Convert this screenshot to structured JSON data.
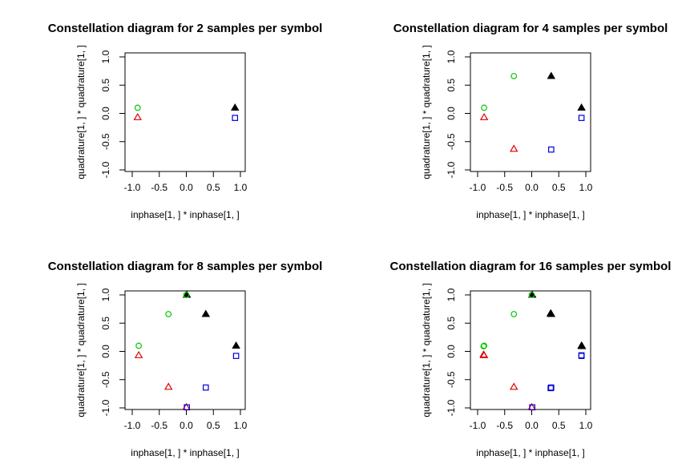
{
  "colors": {
    "pos_pos": "#000000",
    "neg_pos": "#00c800",
    "neg_neg": "#dc0000",
    "pos_neg": "#0000dc"
  },
  "chart_data": [
    {
      "type": "scatter",
      "title": "Constellation diagram for  2  samples per symbol",
      "xlabel": "inphase[1, ] * inphase[1, ]",
      "ylabel": "quadrature[1, ] * quadrature[1, ]",
      "xlim": [
        -1.0,
        1.0
      ],
      "ylim": [
        -1.0,
        1.0
      ],
      "xticks": [
        "-1.0",
        "-0.5",
        "0.0",
        "0.5",
        "1.0"
      ],
      "yticks": [
        "-1.0",
        "-0.5",
        "0.0",
        "0.5",
        "1.0"
      ],
      "series": [
        {
          "marker": "filled-triangle",
          "color": "#000000",
          "points": [
            [
              0.9,
              0.1
            ]
          ]
        },
        {
          "marker": "circle",
          "color": "#00c800",
          "points": [
            [
              -0.9,
              0.1
            ]
          ]
        },
        {
          "marker": "triangle",
          "color": "#dc0000",
          "points": [
            [
              -0.9,
              -0.07
            ]
          ]
        },
        {
          "marker": "square",
          "color": "#0000dc",
          "points": [
            [
              0.9,
              -0.08
            ]
          ]
        }
      ]
    },
    {
      "type": "scatter",
      "title": "Constellation diagram for  4  samples per symbol",
      "xlabel": "inphase[1, ] * inphase[1, ]",
      "ylabel": "quadrature[1, ] * quadrature[1, ]",
      "xlim": [
        -1.0,
        1.0
      ],
      "ylim": [
        -1.0,
        1.0
      ],
      "xticks": [
        "-1.0",
        "-0.5",
        "0.0",
        "0.5",
        "1.0"
      ],
      "yticks": [
        "-1.0",
        "-0.5",
        "0.0",
        "0.5",
        "1.0"
      ],
      "series": [
        {
          "marker": "filled-triangle",
          "color": "#000000",
          "points": [
            [
              0.92,
              0.1
            ],
            [
              0.36,
              0.66
            ]
          ]
        },
        {
          "marker": "circle",
          "color": "#00c800",
          "points": [
            [
              -0.88,
              0.1
            ],
            [
              -0.33,
              0.66
            ]
          ]
        },
        {
          "marker": "triangle",
          "color": "#dc0000",
          "points": [
            [
              -0.88,
              -0.07
            ],
            [
              -0.33,
              -0.63
            ]
          ]
        },
        {
          "marker": "square",
          "color": "#0000dc",
          "points": [
            [
              0.92,
              -0.08
            ],
            [
              0.36,
              -0.64
            ]
          ]
        }
      ]
    },
    {
      "type": "scatter",
      "title": "Constellation diagram for  8  samples per symbol",
      "xlabel": "inphase[1, ] * inphase[1, ]",
      "ylabel": "quadrature[1, ] * quadrature[1, ]",
      "xlim": [
        -1.0,
        1.0
      ],
      "ylim": [
        -1.0,
        1.0
      ],
      "xticks": [
        "-1.0",
        "-0.5",
        "0.0",
        "0.5",
        "1.0"
      ],
      "yticks": [
        "-1.0",
        "-0.5",
        "0.0",
        "0.5",
        "1.0"
      ],
      "series": [
        {
          "marker": "filled-triangle",
          "color": "#000000",
          "points": [
            [
              0.92,
              0.1
            ],
            [
              0.36,
              0.66
            ],
            [
              0.01,
              1.0
            ]
          ]
        },
        {
          "marker": "circle",
          "color": "#00c800",
          "points": [
            [
              -0.88,
              0.1
            ],
            [
              -0.33,
              0.66
            ],
            [
              0.0,
              1.0
            ]
          ]
        },
        {
          "marker": "triangle",
          "color": "#dc0000",
          "points": [
            [
              -0.88,
              -0.07
            ],
            [
              -0.33,
              -0.63
            ],
            [
              0.0,
              -0.99
            ]
          ]
        },
        {
          "marker": "square",
          "color": "#0000dc",
          "points": [
            [
              0.92,
              -0.08
            ],
            [
              0.36,
              -0.64
            ],
            [
              0.01,
              -0.99
            ]
          ]
        }
      ]
    },
    {
      "type": "scatter",
      "title": "Constellation diagram for  16  samples per symbol",
      "xlabel": "inphase[1, ] * inphase[1, ]",
      "ylabel": "quadrature[1, ] * quadrature[1, ]",
      "xlim": [
        -1.0,
        1.0
      ],
      "ylim": [
        -1.0,
        1.0
      ],
      "xticks": [
        "-1.0",
        "-0.5",
        "0.0",
        "0.5",
        "1.0"
      ],
      "yticks": [
        "-1.0",
        "-0.5",
        "0.0",
        "0.5",
        "1.0"
      ],
      "series": [
        {
          "marker": "filled-triangle",
          "color": "#000000",
          "points": [
            [
              0.92,
              0.1
            ],
            [
              0.36,
              0.66
            ],
            [
              0.01,
              1.0
            ],
            [
              0.93,
              0.09
            ],
            [
              0.35,
              0.67
            ]
          ]
        },
        {
          "marker": "circle",
          "color": "#00c800",
          "points": [
            [
              -0.88,
              0.1
            ],
            [
              -0.33,
              0.66
            ],
            [
              0.0,
              1.0
            ],
            [
              -0.89,
              0.09
            ]
          ]
        },
        {
          "marker": "triangle",
          "color": "#dc0000",
          "points": [
            [
              -0.88,
              -0.07
            ],
            [
              -0.33,
              -0.63
            ],
            [
              0.0,
              -0.99
            ],
            [
              -0.89,
              -0.06
            ]
          ]
        },
        {
          "marker": "square",
          "color": "#0000dc",
          "points": [
            [
              0.92,
              -0.08
            ],
            [
              0.36,
              -0.64
            ],
            [
              0.01,
              -0.99
            ],
            [
              0.92,
              -0.07
            ],
            [
              0.35,
              -0.65
            ]
          ]
        }
      ]
    }
  ]
}
